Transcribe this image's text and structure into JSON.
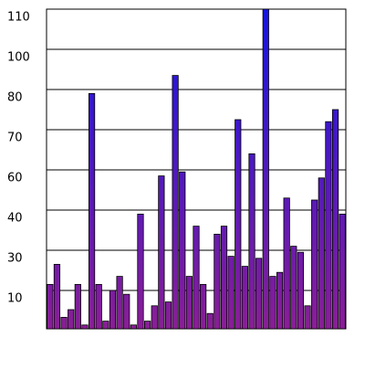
{
  "chart_data": {
    "type": "bar",
    "ylim": [
      0,
      110
    ],
    "yticks": [
      10,
      30,
      40,
      60,
      70,
      80,
      100,
      110
    ],
    "grid": true,
    "color_top": "#1414e6",
    "color_bottom": "#8a1e96",
    "categories": [
      null,
      null,
      null,
      null,
      null,
      null,
      null,
      null,
      null,
      null,
      null,
      null,
      null,
      null,
      null,
      null,
      null,
      null,
      null,
      null,
      null,
      null,
      null,
      null,
      null,
      null,
      null,
      null,
      null,
      null,
      null,
      null,
      null,
      null,
      null,
      null,
      null,
      null,
      null,
      null,
      null,
      null,
      null
    ],
    "values": [
      13,
      23,
      3,
      5,
      13,
      1,
      79,
      13,
      2,
      10,
      17,
      9,
      1,
      39,
      2,
      6,
      57,
      7,
      87,
      59,
      17,
      36,
      13,
      4,
      34,
      36,
      27,
      72.5,
      22,
      64,
      26,
      110,
      17,
      19,
      46,
      31,
      29,
      6,
      45,
      56,
      72,
      75,
      39
    ]
  }
}
